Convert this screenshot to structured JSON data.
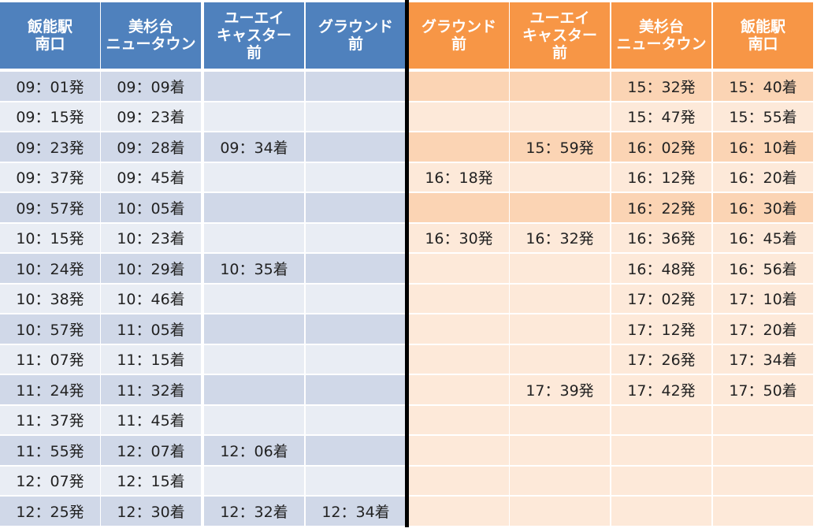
{
  "colors": {
    "left_header": "#4f81bd",
    "left_row_odd": "#d0d8e8",
    "left_row_even": "#e9edf4",
    "right_header": "#f79646",
    "right_row_odd": "#fbd4b4",
    "right_row_even": "#fde9d9",
    "divider": "#000000"
  },
  "outbound": {
    "headers": [
      "飯能駅\n南口",
      "美杉台\nニュータウン",
      "ユーエイ\nキャスター\n前",
      "グラウンド\n前"
    ],
    "rows": [
      [
        "09：01発",
        "09：09着",
        "",
        ""
      ],
      [
        "09：15発",
        "09：23着",
        "",
        ""
      ],
      [
        "09：23発",
        "09：28着",
        "09：34着",
        ""
      ],
      [
        "09：37発",
        "09：45着",
        "",
        ""
      ],
      [
        "09：57発",
        "10：05着",
        "",
        ""
      ],
      [
        "10：15発",
        "10：23着",
        "",
        ""
      ],
      [
        "10：24発",
        "10：29着",
        "10：35着",
        ""
      ],
      [
        "10：38発",
        "10：46着",
        "",
        ""
      ],
      [
        "10：57発",
        "11：05着",
        "",
        ""
      ],
      [
        "11：07発",
        "11：15着",
        "",
        ""
      ],
      [
        "11：24発",
        "11：32着",
        "",
        ""
      ],
      [
        "11：37発",
        "11：45着",
        "",
        ""
      ],
      [
        "11：55発",
        "12：07着",
        "12：06着",
        ""
      ],
      [
        "12：07発",
        "12：15着",
        "",
        ""
      ],
      [
        "12：25発",
        "12：30着",
        "12：32着",
        "12：34着"
      ]
    ]
  },
  "inbound": {
    "headers": [
      "グラウンド\n前",
      "ユーエイ\nキャスター\n前",
      "美杉台\nニュータウン",
      "飯能駅\n南口"
    ],
    "rows": [
      [
        "",
        "",
        "15：32発",
        "15：40着"
      ],
      [
        "",
        "",
        "15：47発",
        "15：55着"
      ],
      [
        "",
        "15：59発",
        "16：02発",
        "16：10着"
      ],
      [
        "16：18発",
        "",
        "16：12発",
        "16：20着"
      ],
      [
        "",
        "",
        "16：22発",
        "16：30着"
      ],
      [
        "16：30発",
        "16：32発",
        "16：36発",
        "16：45着"
      ],
      [
        "",
        "",
        "16：48発",
        "16：56着"
      ],
      [
        "",
        "",
        "17：02発",
        "17：10着"
      ],
      [
        "",
        "",
        "17：12発",
        "17：20着"
      ],
      [
        "",
        "",
        "17：26発",
        "17：34着"
      ],
      [
        "",
        "17：39発",
        "17：42発",
        "17：50着"
      ],
      [
        "",
        "",
        "",
        ""
      ],
      [
        "",
        "",
        "",
        ""
      ],
      [
        "",
        "",
        "",
        ""
      ],
      [
        "",
        "",
        "",
        ""
      ]
    ],
    "shaded_rows": 6
  }
}
